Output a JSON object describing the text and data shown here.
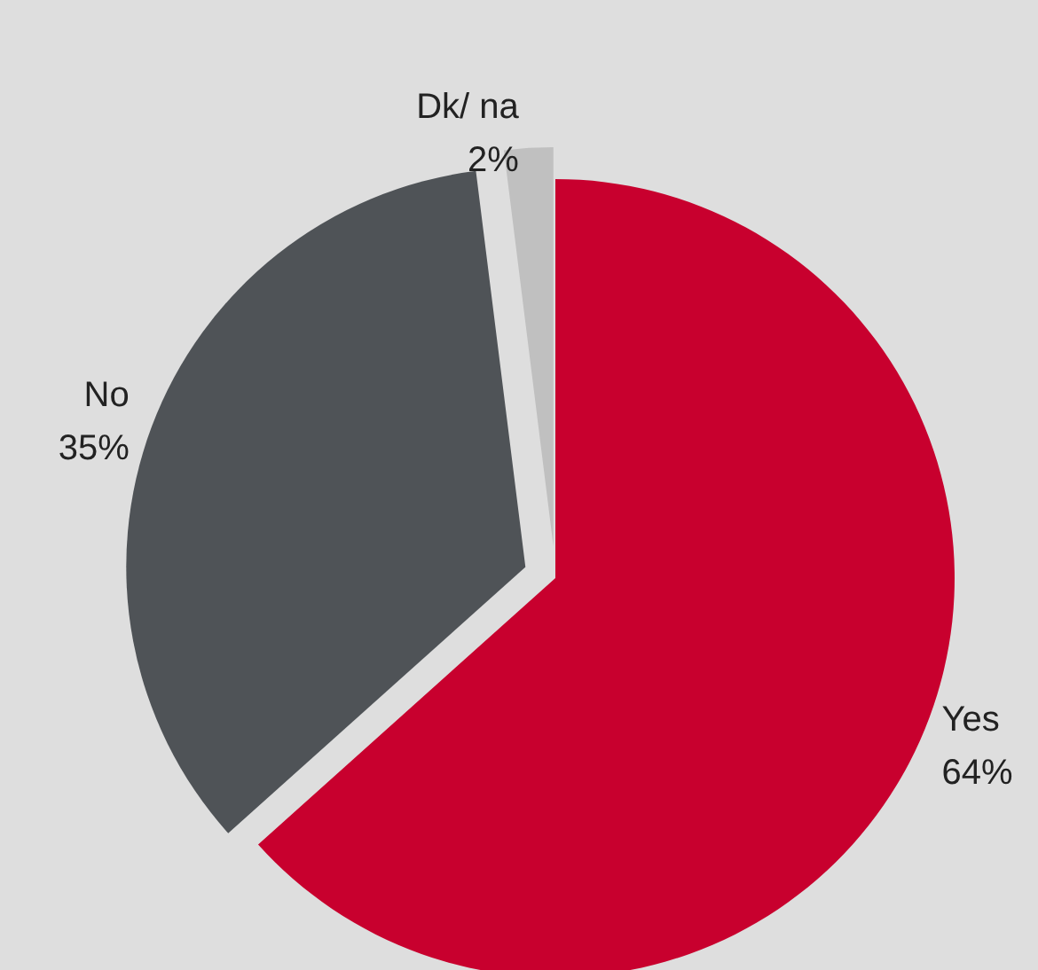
{
  "chart_data": {
    "type": "pie",
    "categories": [
      "Yes",
      "No",
      "Dk/ na"
    ],
    "values": [
      64,
      35,
      2
    ],
    "value_labels": [
      "64%",
      "35%",
      "2%"
    ],
    "colors": [
      "#c8002e",
      "#4f5357",
      "#c0c0c0"
    ],
    "legend": false
  }
}
